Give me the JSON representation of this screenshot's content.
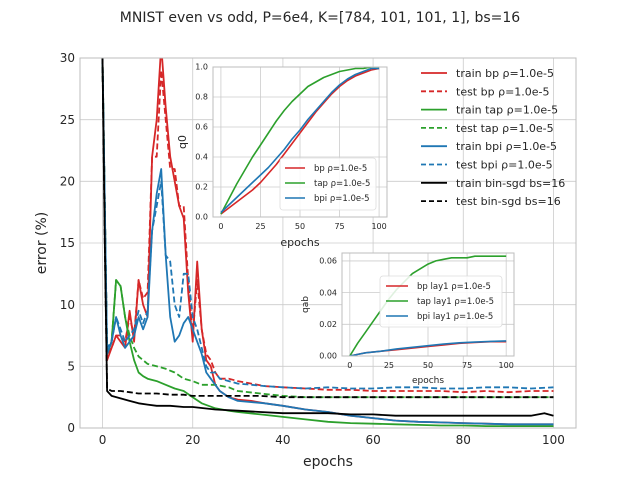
{
  "figure": {
    "title": "MNIST even vs odd, P=6e4, K=[784, 101, 101, 1], bs=16"
  },
  "colors": {
    "bp": "#d62728",
    "tap": "#2ca02c",
    "bpi": "#1f77b4",
    "bin": "#000000",
    "grid": "#cccccc",
    "axis": "#bdbdbd"
  },
  "chart_data": [
    {
      "type": "line",
      "title": "",
      "xlabel": "epochs",
      "ylabel": "error (%)",
      "xlim": [
        -5,
        105
      ],
      "ylim": [
        0,
        30
      ],
      "xticks": [
        "0",
        "20",
        "40",
        "60",
        "80",
        "100"
      ],
      "yticks": [
        "0",
        "5",
        "10",
        "15",
        "20",
        "25",
        "30"
      ],
      "grid": true,
      "legend_position": "top-right",
      "series": [
        {
          "name": "train bp ρ=1.0e-5",
          "color": "bp",
          "dash": false,
          "x": [
            0,
            1,
            2,
            3,
            4,
            5,
            6,
            7,
            8,
            9,
            10,
            11,
            12,
            13,
            14,
            15,
            16,
            17,
            18,
            19,
            20,
            21,
            22,
            23,
            24,
            25,
            26,
            28,
            30,
            33,
            36,
            40,
            45,
            50,
            55,
            60,
            65,
            70,
            75,
            80,
            85,
            90,
            95,
            100
          ],
          "y": [
            30,
            5.5,
            6.5,
            7.5,
            7.0,
            6.5,
            9.5,
            7.0,
            12,
            10,
            9,
            22,
            25,
            31,
            26,
            22,
            20,
            18,
            17,
            11,
            7,
            13.5,
            8,
            5.5,
            5,
            3.5,
            3,
            2.5,
            2.3,
            2.2,
            2.0,
            1.8,
            1.5,
            1.3,
            1.0,
            0.8,
            0.6,
            0.5,
            0.45,
            0.4,
            0.35,
            0.3,
            0.3,
            0.3
          ]
        },
        {
          "name": "test bp ρ=1.0e-5",
          "color": "bp",
          "dash": true,
          "x": [
            0,
            1,
            2,
            3,
            4,
            5,
            6,
            7,
            8,
            9,
            10,
            11,
            12,
            13,
            14,
            15,
            16,
            17,
            18,
            19,
            20,
            21,
            22,
            23,
            24,
            25,
            26,
            28,
            30,
            33,
            36,
            40,
            45,
            50,
            55,
            60,
            65,
            70,
            75,
            80,
            85,
            90,
            95,
            100
          ],
          "y": [
            30,
            6,
            6.5,
            7.5,
            7.5,
            7,
            9,
            7.5,
            12,
            10.5,
            11,
            22,
            22,
            29,
            25,
            21,
            21,
            18,
            18,
            12,
            7.5,
            12,
            8,
            6,
            5.5,
            4.5,
            4,
            4,
            3.8,
            3.6,
            3.4,
            3.3,
            3.2,
            3.1,
            3.1,
            3.0,
            3.0,
            3.0,
            3.0,
            2.9,
            3.0,
            2.9,
            3.0,
            3.0
          ]
        },
        {
          "name": "train tap ρ=1.0e-5",
          "color": "tap",
          "dash": false,
          "x": [
            0,
            1,
            2,
            3,
            4,
            5,
            6,
            7,
            8,
            9,
            10,
            12,
            14,
            16,
            18,
            20,
            22,
            25,
            28,
            30,
            35,
            40,
            45,
            50,
            55,
            60,
            65,
            70,
            75,
            80,
            85,
            90,
            95,
            100
          ],
          "y": [
            30,
            6,
            7,
            12,
            11.5,
            9,
            7,
            5.5,
            4.5,
            4.2,
            4.0,
            3.8,
            3.5,
            3.2,
            3.0,
            2.5,
            2.0,
            1.6,
            1.4,
            1.3,
            1.1,
            0.9,
            0.7,
            0.5,
            0.4,
            0.35,
            0.3,
            0.25,
            0.2,
            0.2,
            0.15,
            0.15,
            0.15,
            0.15
          ]
        },
        {
          "name": "test tap ρ=1.0e-5",
          "color": "tap",
          "dash": true,
          "x": [
            0,
            1,
            2,
            3,
            4,
            5,
            6,
            7,
            8,
            9,
            10,
            12,
            14,
            16,
            18,
            20,
            22,
            25,
            28,
            30,
            35,
            40,
            45,
            50,
            55,
            60,
            65,
            70,
            75,
            80,
            85,
            90,
            95,
            100
          ],
          "y": [
            30,
            6,
            7,
            12,
            11.5,
            9,
            7.5,
            6.5,
            5.8,
            5.5,
            5.2,
            5.0,
            4.8,
            4.5,
            4.0,
            3.8,
            3.5,
            3.5,
            3.3,
            3.0,
            2.8,
            2.6,
            2.5,
            2.5,
            2.5,
            2.5,
            2.5,
            2.5,
            2.5,
            2.5,
            2.5,
            2.5,
            2.5,
            2.5
          ]
        },
        {
          "name": "train bpi ρ=1.0e-5",
          "color": "bpi",
          "dash": false,
          "x": [
            0,
            1,
            2,
            3,
            4,
            5,
            6,
            7,
            8,
            9,
            10,
            11,
            12,
            13,
            14,
            15,
            16,
            17,
            18,
            19,
            20,
            21,
            22,
            23,
            24,
            25,
            26,
            28,
            30,
            33,
            36,
            40,
            45,
            50,
            55,
            60,
            65,
            70,
            75,
            80,
            85,
            90,
            95,
            100
          ],
          "y": [
            30,
            6,
            7,
            9,
            7.5,
            6.5,
            7,
            7.5,
            9,
            8,
            9,
            16,
            19,
            21,
            14,
            9,
            7,
            7.5,
            8.5,
            9,
            8,
            7,
            6,
            4.5,
            4,
            3.5,
            3,
            2.5,
            2.2,
            2.1,
            2.0,
            1.8,
            1.5,
            1.3,
            1.0,
            0.8,
            0.6,
            0.5,
            0.45,
            0.4,
            0.35,
            0.3,
            0.3,
            0.3
          ]
        },
        {
          "name": "test bpi ρ=1.0e-5",
          "color": "bpi",
          "dash": true,
          "x": [
            0,
            1,
            2,
            3,
            4,
            5,
            6,
            7,
            8,
            9,
            10,
            11,
            12,
            13,
            14,
            15,
            16,
            17,
            18,
            19,
            20,
            21,
            22,
            23,
            24,
            25,
            26,
            28,
            30,
            33,
            36,
            40,
            45,
            50,
            55,
            60,
            65,
            70,
            75,
            80,
            85,
            90,
            95,
            100
          ],
          "y": [
            30,
            6.5,
            7,
            9,
            8,
            7,
            7.5,
            8,
            9.5,
            8.5,
            9.5,
            16,
            18,
            20,
            14,
            13.5,
            10,
            9,
            12.5,
            12.5,
            9,
            8,
            6.5,
            5,
            4.5,
            4.5,
            4,
            3.8,
            3.6,
            3.5,
            3.4,
            3.3,
            3.2,
            3.3,
            3.2,
            3.2,
            3.3,
            3.3,
            3.2,
            3.2,
            3.3,
            3.3,
            3.2,
            3.3
          ]
        },
        {
          "name": "train bin-sgd bs=16",
          "color": "bin",
          "dash": false,
          "x": [
            0,
            0.5,
            1,
            2,
            4,
            6,
            8,
            10,
            12,
            15,
            18,
            20,
            25,
            30,
            35,
            40,
            45,
            50,
            55,
            60,
            65,
            70,
            75,
            80,
            85,
            90,
            95,
            98,
            100
          ],
          "y": [
            30,
            15,
            3,
            2.6,
            2.4,
            2.2,
            2.0,
            1.9,
            1.8,
            1.8,
            1.7,
            1.7,
            1.5,
            1.4,
            1.3,
            1.2,
            1.2,
            1.2,
            1.1,
            1.1,
            1.0,
            1.0,
            1.0,
            1.0,
            1.0,
            1.0,
            1.0,
            1.2,
            1.0
          ]
        },
        {
          "name": "test bin-sgd bs=16",
          "color": "bin",
          "dash": true,
          "x": [
            0,
            0.5,
            1,
            2,
            4,
            6,
            8,
            10,
            12,
            15,
            18,
            20,
            25,
            30,
            35,
            40,
            45,
            50,
            55,
            60,
            65,
            70,
            75,
            80,
            85,
            90,
            95,
            100
          ],
          "y": [
            30,
            15,
            3.2,
            3.0,
            3.0,
            2.9,
            2.8,
            2.8,
            2.8,
            2.7,
            2.7,
            2.6,
            2.6,
            2.6,
            2.6,
            2.5,
            2.5,
            2.5,
            2.5,
            2.5,
            2.5,
            2.5,
            2.5,
            2.5,
            2.5,
            2.5,
            2.5,
            2.5
          ]
        }
      ]
    },
    {
      "type": "line",
      "title": "",
      "xlabel": "epochs",
      "ylabel": "q0",
      "xlim": [
        -5,
        105
      ],
      "ylim": [
        0,
        1.0
      ],
      "xticks": [
        "0",
        "25",
        "50",
        "75",
        "100"
      ],
      "yticks": [
        "0.0",
        "0.2",
        "0.4",
        "0.6",
        "0.8",
        "1.0"
      ],
      "grid": true,
      "legend_position": "lower-right",
      "series": [
        {
          "name": "bp ρ=1.0e-5",
          "color": "bp",
          "x": [
            0,
            5,
            10,
            15,
            20,
            25,
            30,
            35,
            40,
            45,
            50,
            55,
            60,
            65,
            70,
            75,
            80,
            85,
            90,
            95,
            100
          ],
          "y": [
            0.02,
            0.06,
            0.1,
            0.14,
            0.18,
            0.23,
            0.29,
            0.35,
            0.42,
            0.49,
            0.56,
            0.63,
            0.7,
            0.76,
            0.82,
            0.87,
            0.91,
            0.94,
            0.96,
            0.98,
            0.99
          ]
        },
        {
          "name": "tap ρ=1.0e-5",
          "color": "tap",
          "x": [
            0,
            5,
            10,
            15,
            20,
            25,
            30,
            35,
            40,
            45,
            50,
            55,
            60,
            65,
            70,
            75,
            80,
            85,
            90,
            95,
            100
          ],
          "y": [
            0.02,
            0.12,
            0.22,
            0.31,
            0.4,
            0.48,
            0.56,
            0.64,
            0.71,
            0.77,
            0.82,
            0.87,
            0.9,
            0.93,
            0.95,
            0.97,
            0.98,
            0.99,
            0.99,
            1.0,
            1.0
          ]
        },
        {
          "name": "bpi ρ=1.0e-5",
          "color": "bpi",
          "x": [
            0,
            5,
            10,
            15,
            20,
            25,
            30,
            35,
            40,
            45,
            50,
            55,
            60,
            65,
            70,
            75,
            80,
            85,
            90,
            95,
            100
          ],
          "y": [
            0.03,
            0.08,
            0.13,
            0.18,
            0.23,
            0.28,
            0.33,
            0.39,
            0.45,
            0.52,
            0.58,
            0.65,
            0.71,
            0.77,
            0.83,
            0.88,
            0.92,
            0.95,
            0.97,
            0.99,
            0.99
          ]
        }
      ]
    },
    {
      "type": "line",
      "title": "",
      "xlabel": "epochs",
      "ylabel": "qab",
      "xlim": [
        -5,
        105
      ],
      "ylim": [
        0,
        0.065
      ],
      "xticks": [
        "0",
        "25",
        "50",
        "75",
        "100"
      ],
      "yticks": [
        "0.00",
        "0.02",
        "0.04",
        "0.06"
      ],
      "grid": true,
      "legend_position": "center",
      "series": [
        {
          "name": "bp lay1 ρ=1.0e-5",
          "color": "bp",
          "x": [
            0,
            5,
            10,
            20,
            30,
            40,
            50,
            60,
            70,
            80,
            90,
            100
          ],
          "y": [
            0.0,
            0.001,
            0.002,
            0.003,
            0.004,
            0.005,
            0.006,
            0.007,
            0.008,
            0.0085,
            0.009,
            0.009
          ]
        },
        {
          "name": "tap lay1 ρ=1.0e-5",
          "color": "tap",
          "x": [
            0,
            5,
            10,
            15,
            20,
            25,
            30,
            35,
            40,
            45,
            50,
            55,
            60,
            65,
            70,
            75,
            80,
            85,
            90,
            95,
            100
          ],
          "y": [
            0.0,
            0.008,
            0.015,
            0.022,
            0.029,
            0.036,
            0.042,
            0.047,
            0.052,
            0.055,
            0.058,
            0.06,
            0.061,
            0.062,
            0.062,
            0.062,
            0.063,
            0.063,
            0.063,
            0.063,
            0.063
          ]
        },
        {
          "name": "bpi lay1 ρ=1.0e-5",
          "color": "bpi",
          "x": [
            0,
            5,
            10,
            20,
            30,
            40,
            50,
            60,
            70,
            80,
            90,
            100
          ],
          "y": [
            0.0,
            0.001,
            0.002,
            0.003,
            0.0045,
            0.0055,
            0.0065,
            0.0075,
            0.0083,
            0.0088,
            0.0092,
            0.0095
          ]
        }
      ]
    }
  ]
}
